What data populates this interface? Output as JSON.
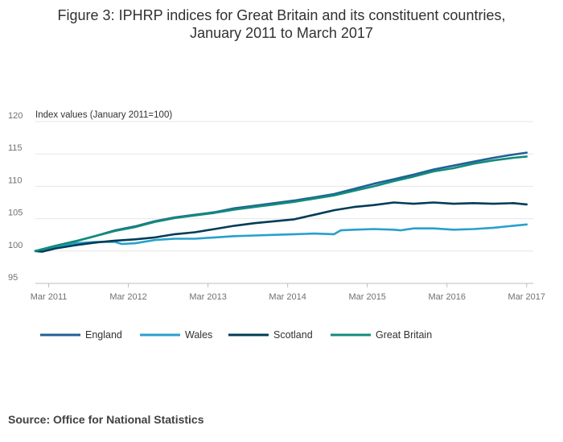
{
  "chart_data": {
    "type": "line",
    "title_line1": "Figure 3: IPHRP indices for Great Britain and its constituent countries,",
    "title_line2": "January 2011 to March 2017",
    "ylabel": "Index values (January 2011=100)",
    "ylim": [
      95,
      120
    ],
    "yticks": [
      95,
      100,
      105,
      110,
      115,
      120
    ],
    "xlim": [
      2011.0,
      2017.25
    ],
    "xticks": [
      {
        "label": "Mar 2011",
        "x": 2011.167
      },
      {
        "label": "Mar 2012",
        "x": 2012.167
      },
      {
        "label": "Mar 2013",
        "x": 2013.167
      },
      {
        "label": "Mar 2014",
        "x": 2014.167
      },
      {
        "label": "Mar 2015",
        "x": 2015.167
      },
      {
        "label": "Mar 2016",
        "x": 2016.167
      },
      {
        "label": "Mar 2017",
        "x": 2017.167
      }
    ],
    "grid": true,
    "legend_position": "bottom-left",
    "series": [
      {
        "name": "England",
        "color": "#206095",
        "points": [
          [
            2011.0,
            100
          ],
          [
            2011.25,
            100.8
          ],
          [
            2011.5,
            101.5
          ],
          [
            2011.75,
            102.3
          ],
          [
            2012.0,
            103.2
          ],
          [
            2012.25,
            103.8
          ],
          [
            2012.5,
            104.6
          ],
          [
            2012.75,
            105.2
          ],
          [
            2013.0,
            105.6
          ],
          [
            2013.25,
            106.0
          ],
          [
            2013.5,
            106.6
          ],
          [
            2013.75,
            107.0
          ],
          [
            2014.0,
            107.4
          ],
          [
            2014.25,
            107.8
          ],
          [
            2014.5,
            108.3
          ],
          [
            2014.75,
            108.8
          ],
          [
            2015.0,
            109.6
          ],
          [
            2015.25,
            110.4
          ],
          [
            2015.5,
            111.1
          ],
          [
            2015.75,
            111.8
          ],
          [
            2016.0,
            112.6
          ],
          [
            2016.25,
            113.2
          ],
          [
            2016.5,
            113.8
          ],
          [
            2016.75,
            114.4
          ],
          [
            2017.0,
            114.9
          ],
          [
            2017.167,
            115.2
          ]
        ]
      },
      {
        "name": "Wales",
        "color": "#27a0cc",
        "points": [
          [
            2011.0,
            100
          ],
          [
            2011.25,
            100.7
          ],
          [
            2011.5,
            101.2
          ],
          [
            2011.75,
            101.4
          ],
          [
            2012.0,
            101.4
          ],
          [
            2012.083,
            101.1
          ],
          [
            2012.25,
            101.2
          ],
          [
            2012.5,
            101.7
          ],
          [
            2012.75,
            101.9
          ],
          [
            2013.0,
            101.9
          ],
          [
            2013.25,
            102.1
          ],
          [
            2013.5,
            102.3
          ],
          [
            2013.75,
            102.4
          ],
          [
            2014.0,
            102.5
          ],
          [
            2014.25,
            102.6
          ],
          [
            2014.5,
            102.7
          ],
          [
            2014.75,
            102.6
          ],
          [
            2014.833,
            103.2
          ],
          [
            2015.0,
            103.3
          ],
          [
            2015.25,
            103.4
          ],
          [
            2015.5,
            103.3
          ],
          [
            2015.583,
            103.2
          ],
          [
            2015.75,
            103.5
          ],
          [
            2016.0,
            103.5
          ],
          [
            2016.25,
            103.3
          ],
          [
            2016.5,
            103.4
          ],
          [
            2016.75,
            103.6
          ],
          [
            2017.0,
            103.9
          ],
          [
            2017.167,
            104.1
          ]
        ]
      },
      {
        "name": "Scotland",
        "color": "#003c57",
        "points": [
          [
            2011.0,
            100
          ],
          [
            2011.083,
            99.9
          ],
          [
            2011.25,
            100.4
          ],
          [
            2011.5,
            100.9
          ],
          [
            2011.75,
            101.3
          ],
          [
            2012.0,
            101.6
          ],
          [
            2012.25,
            101.8
          ],
          [
            2012.5,
            102.1
          ],
          [
            2012.75,
            102.6
          ],
          [
            2013.0,
            102.9
          ],
          [
            2013.25,
            103.4
          ],
          [
            2013.5,
            103.9
          ],
          [
            2013.75,
            104.3
          ],
          [
            2014.0,
            104.6
          ],
          [
            2014.25,
            104.9
          ],
          [
            2014.5,
            105.6
          ],
          [
            2014.75,
            106.3
          ],
          [
            2015.0,
            106.8
          ],
          [
            2015.25,
            107.1
          ],
          [
            2015.5,
            107.5
          ],
          [
            2015.75,
            107.3
          ],
          [
            2016.0,
            107.5
          ],
          [
            2016.25,
            107.3
          ],
          [
            2016.5,
            107.4
          ],
          [
            2016.75,
            107.3
          ],
          [
            2017.0,
            107.4
          ],
          [
            2017.167,
            107.2
          ]
        ]
      },
      {
        "name": "Great Britain",
        "color": "#118c7b",
        "points": [
          [
            2011.0,
            100
          ],
          [
            2011.25,
            100.8
          ],
          [
            2011.5,
            101.5
          ],
          [
            2011.75,
            102.3
          ],
          [
            2012.0,
            103.1
          ],
          [
            2012.25,
            103.7
          ],
          [
            2012.5,
            104.5
          ],
          [
            2012.75,
            105.1
          ],
          [
            2013.0,
            105.5
          ],
          [
            2013.25,
            105.9
          ],
          [
            2013.5,
            106.4
          ],
          [
            2013.75,
            106.8
          ],
          [
            2014.0,
            107.2
          ],
          [
            2014.25,
            107.6
          ],
          [
            2014.5,
            108.1
          ],
          [
            2014.75,
            108.6
          ],
          [
            2015.0,
            109.3
          ],
          [
            2015.25,
            110.0
          ],
          [
            2015.5,
            110.8
          ],
          [
            2015.75,
            111.5
          ],
          [
            2016.0,
            112.3
          ],
          [
            2016.25,
            112.8
          ],
          [
            2016.5,
            113.5
          ],
          [
            2016.75,
            114.0
          ],
          [
            2017.0,
            114.4
          ],
          [
            2017.167,
            114.6
          ]
        ]
      }
    ]
  },
  "footer": {
    "source": "Source: Office for National Statistics"
  }
}
